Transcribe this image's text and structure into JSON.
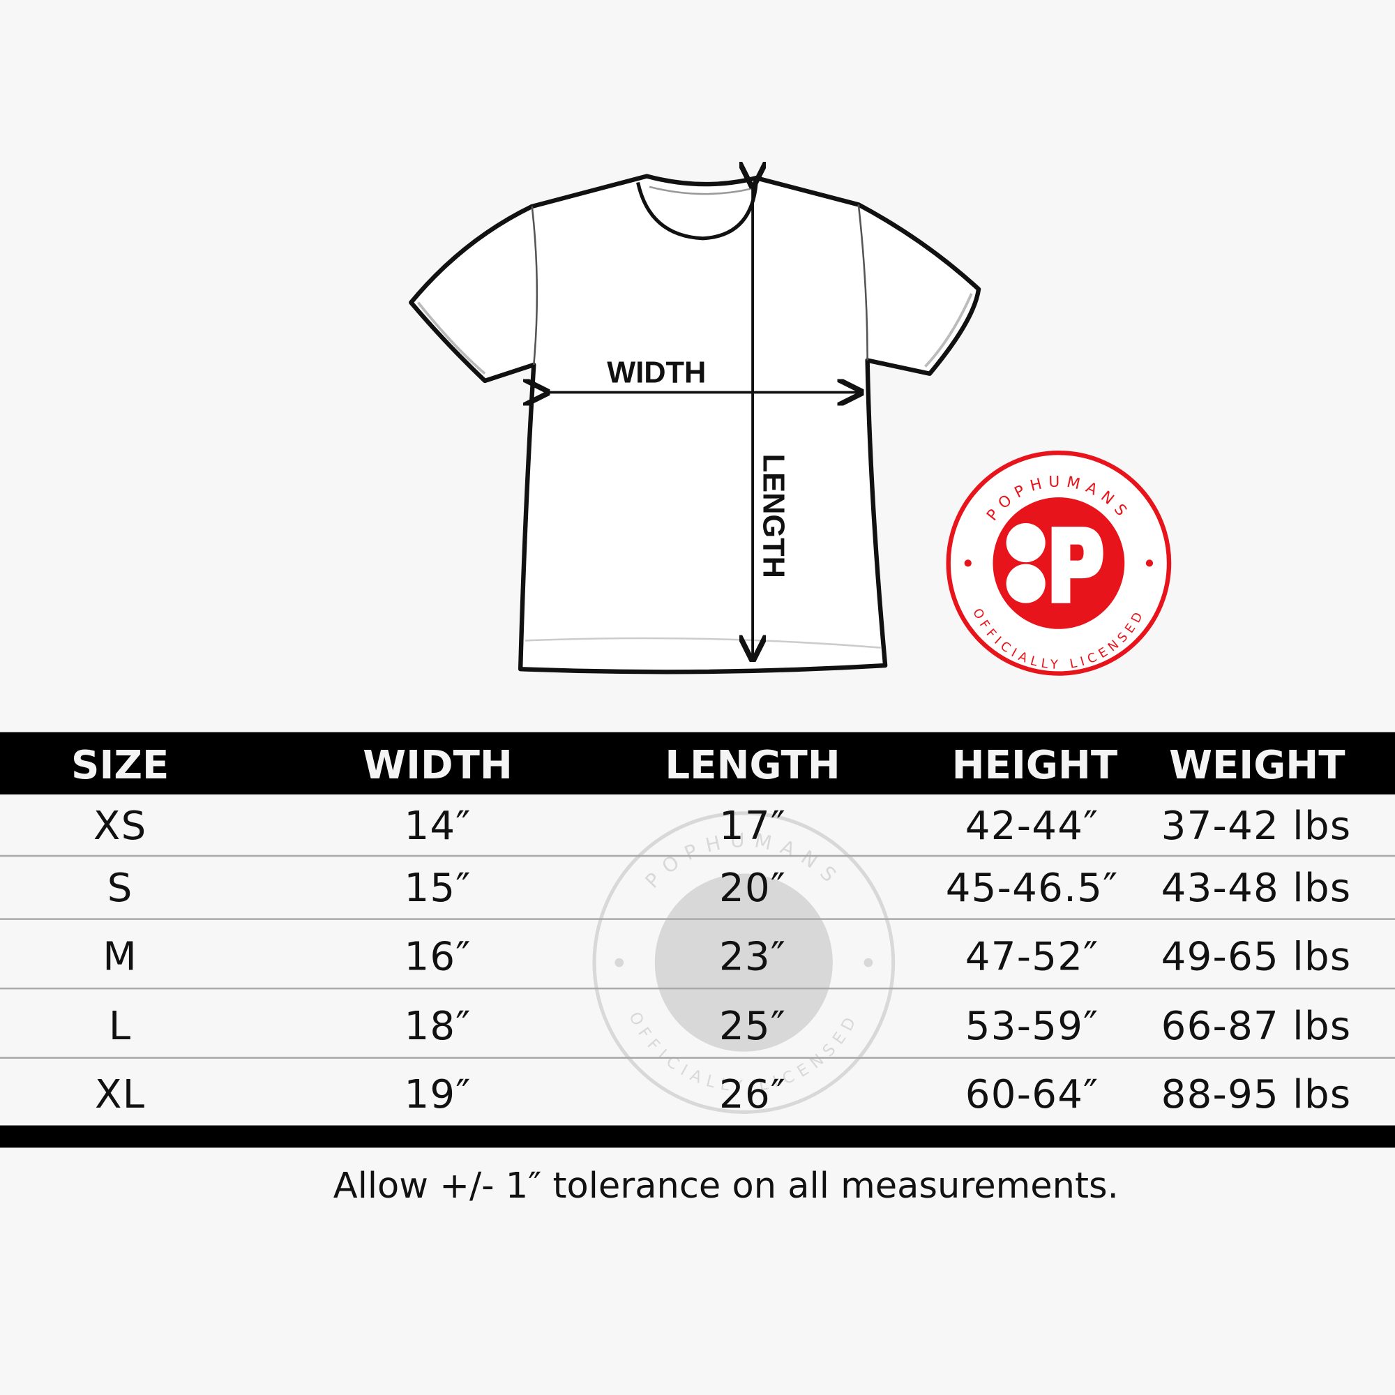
{
  "diagram": {
    "width_label": "WIDTH",
    "length_label": "LENGTH"
  },
  "badge": {
    "brand": "POPHUMANS",
    "tagline": "OFFICIALLY LICENSED",
    "color": "#e8141b"
  },
  "table": {
    "headers": [
      "SIZE",
      "WIDTH",
      "LENGTH",
      "HEIGHT",
      "WEIGHT"
    ],
    "rows": [
      [
        "XS",
        "14″",
        "17″",
        "42-44″",
        "37-42 lbs"
      ],
      [
        "S",
        "15″",
        "20″",
        "45-46.5″",
        "43-48 lbs"
      ],
      [
        "M",
        "16″",
        "23″",
        "47-52″",
        "49-65 lbs"
      ],
      [
        "L",
        "18″",
        "25″",
        "53-59″",
        "66-87 lbs"
      ],
      [
        "XL",
        "19″",
        "26″",
        "60-64″",
        "88-95 lbs"
      ]
    ]
  },
  "footer": {
    "note": "Allow +/- 1″ tolerance on all measurements."
  }
}
